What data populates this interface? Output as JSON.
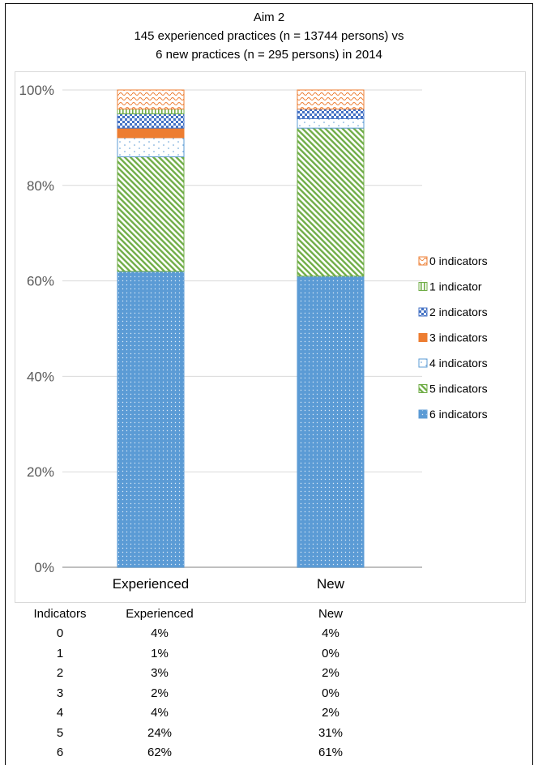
{
  "chart_data": {
    "type": "bar",
    "stacked": true,
    "title": "Aim 2",
    "subtitle_lines": [
      "145 experienced practices (n = 13744 persons) vs",
      "6 new practices (n = 295 persons) in 2014"
    ],
    "categories": [
      "Experienced",
      "New"
    ],
    "ylim": [
      0,
      100
    ],
    "yticks": [
      "0%",
      "20%",
      "40%",
      "60%",
      "80%",
      "100%"
    ],
    "legend_position": "right",
    "grid": true,
    "series": [
      {
        "name": "6 indicators",
        "values": [
          62,
          61
        ],
        "color": "#5b9bd5",
        "pattern": "dots-blue"
      },
      {
        "name": "5 indicators",
        "values": [
          24,
          31
        ],
        "color": "#70ad47",
        "pattern": "diag-green"
      },
      {
        "name": "4 indicators",
        "values": [
          4,
          2
        ],
        "color": "#5b9bd5",
        "pattern": "sparse-dots"
      },
      {
        "name": "3 indicators",
        "values": [
          2,
          0
        ],
        "color": "#ed7d31",
        "pattern": "solid-orange"
      },
      {
        "name": "2 indicators",
        "values": [
          3,
          2
        ],
        "color": "#4472c4",
        "pattern": "checker-blue"
      },
      {
        "name": "1 indicator",
        "values": [
          1,
          0
        ],
        "color": "#70ad47",
        "pattern": "vlines-green"
      },
      {
        "name": "0 indicators",
        "values": [
          4,
          4
        ],
        "color": "#ed7d31",
        "pattern": "wave-orange"
      }
    ],
    "legend_order": [
      "0 indicators",
      "1 indicator",
      "2 indicators",
      "3 indicators",
      "4 indicators",
      "5 indicators",
      "6 indicators"
    ]
  },
  "table": {
    "headers": [
      "Indicators",
      "Experienced",
      "New"
    ],
    "rows": [
      [
        "0",
        "4%",
        "4%"
      ],
      [
        "1",
        "1%",
        "0%"
      ],
      [
        "2",
        "3%",
        "2%"
      ],
      [
        "3",
        "2%",
        "0%"
      ],
      [
        "4",
        "4%",
        "2%"
      ],
      [
        "5",
        "24%",
        "31%"
      ],
      [
        "6",
        "62%",
        "61%"
      ]
    ]
  }
}
